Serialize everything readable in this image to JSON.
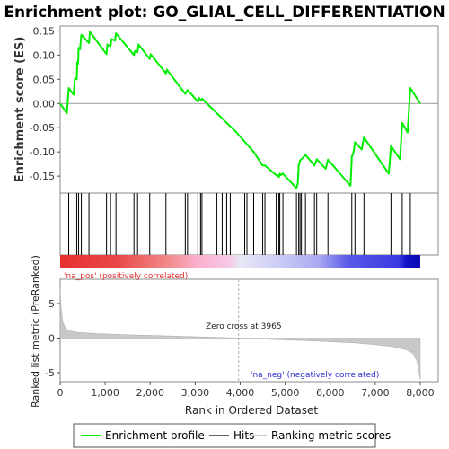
{
  "chart_data": {
    "type": "line",
    "title": "Enrichment plot: GO_GLIAL_CELL_DIFFERENTIATION",
    "top_panel": {
      "ylabel": "Enrichment score (ES)",
      "ylim": [
        -0.185,
        0.16
      ],
      "yticks": [
        0.15,
        0.1,
        0.05,
        0.0,
        -0.05,
        -0.1,
        -0.15
      ],
      "ytick_labels": [
        "0.15",
        "0.10",
        "0.05",
        "0.00",
        "-0.05",
        "-0.10",
        "-0.15"
      ],
      "line_color": "#00ee00",
      "es_points": [
        [
          0,
          0.0
        ],
        [
          150,
          -0.02
        ],
        [
          190,
          0.032
        ],
        [
          300,
          0.018
        ],
        [
          330,
          0.052
        ],
        [
          370,
          0.05
        ],
        [
          380,
          0.085
        ],
        [
          400,
          0.082
        ],
        [
          410,
          0.115
        ],
        [
          440,
          0.112
        ],
        [
          470,
          0.142
        ],
        [
          640,
          0.125
        ],
        [
          660,
          0.148
        ],
        [
          1030,
          0.102
        ],
        [
          1050,
          0.122
        ],
        [
          1120,
          0.118
        ],
        [
          1140,
          0.133
        ],
        [
          1220,
          0.13
        ],
        [
          1240,
          0.145
        ],
        [
          1640,
          0.1
        ],
        [
          1660,
          0.108
        ],
        [
          1720,
          0.106
        ],
        [
          1740,
          0.122
        ],
        [
          1990,
          0.092
        ],
        [
          2010,
          0.102
        ],
        [
          2350,
          0.062
        ],
        [
          2370,
          0.07
        ],
        [
          2780,
          0.02
        ],
        [
          2830,
          0.028
        ],
        [
          3060,
          0.004
        ],
        [
          3080,
          0.012
        ],
        [
          3120,
          0.006
        ],
        [
          3150,
          0.01
        ],
        [
          3700,
          -0.04
        ],
        [
          3900,
          -0.058
        ],
        [
          4300,
          -0.1
        ],
        [
          4500,
          -0.128
        ],
        [
          4550,
          -0.128
        ],
        [
          4800,
          -0.148
        ],
        [
          4830,
          -0.148
        ],
        [
          4860,
          -0.152
        ],
        [
          4880,
          -0.145
        ],
        [
          4900,
          -0.148
        ],
        [
          4950,
          -0.145
        ],
        [
          5250,
          -0.175
        ],
        [
          5280,
          -0.165
        ],
        [
          5300,
          -0.13
        ],
        [
          5330,
          -0.118
        ],
        [
          5360,
          -0.115
        ],
        [
          5400,
          -0.112
        ],
        [
          5450,
          -0.106
        ],
        [
          5650,
          -0.128
        ],
        [
          5700,
          -0.115
        ],
        [
          5900,
          -0.135
        ],
        [
          5950,
          -0.116
        ],
        [
          6450,
          -0.17
        ],
        [
          6480,
          -0.11
        ],
        [
          6520,
          -0.1
        ],
        [
          6550,
          -0.08
        ],
        [
          6700,
          -0.095
        ],
        [
          6750,
          -0.07
        ],
        [
          7300,
          -0.145
        ],
        [
          7350,
          -0.088
        ],
        [
          7550,
          -0.115
        ],
        [
          7600,
          -0.04
        ],
        [
          7720,
          -0.06
        ],
        [
          7780,
          0.032
        ],
        [
          8000,
          0.0
        ]
      ]
    },
    "hits_panel": {
      "label": "Hits",
      "hit_ranks": [
        190,
        330,
        370,
        410,
        470,
        640,
        1030,
        1120,
        1240,
        1640,
        1720,
        1990,
        2350,
        2780,
        2830,
        3060,
        3120,
        3150,
        3480,
        3600,
        3700,
        3780,
        4100,
        4150,
        4300,
        4500,
        4550,
        4800,
        4860,
        4880,
        4950,
        5250,
        5300,
        5330,
        5360,
        5450,
        5650,
        5700,
        5950,
        6480,
        6550,
        6750,
        7350,
        7600,
        7780
      ]
    },
    "heat_bar": {
      "stops": [
        [
          0,
          "#e83030"
        ],
        [
          0.16,
          "#e84848"
        ],
        [
          0.3,
          "#f28a8a"
        ],
        [
          0.38,
          "#fbb0ce"
        ],
        [
          0.47,
          "#f5c8e6"
        ],
        [
          0.5,
          "#e8e8f6"
        ],
        [
          0.62,
          "#c8c8f6"
        ],
        [
          0.72,
          "#a8a8f0"
        ],
        [
          0.8,
          "#5a5ae8"
        ],
        [
          0.94,
          "#3a3ae2"
        ],
        [
          0.96,
          "#1414c8"
        ],
        [
          1,
          "#0808b0"
        ]
      ]
    },
    "bottom_panel": {
      "ylabel": "Ranked list metric (PreRanked)",
      "ylim": [
        -6.3,
        8.5
      ],
      "yticks": [
        5,
        0,
        -5
      ],
      "ytick_labels": [
        "5",
        "0",
        "-5"
      ],
      "zero_cross_label": "Zero cross at 3965",
      "zero_cross_rank": 3965,
      "pos_label": "'na_pos' (positively correlated)",
      "neg_label": "'na_neg' (negatively correlated)",
      "metric_points": [
        [
          0,
          7.2
        ],
        [
          20,
          4.5
        ],
        [
          60,
          2.3
        ],
        [
          120,
          1.4
        ],
        [
          200,
          1.05
        ],
        [
          400,
          0.82
        ],
        [
          800,
          0.65
        ],
        [
          1500,
          0.48
        ],
        [
          2500,
          0.3
        ],
        [
          3500,
          0.1
        ],
        [
          3965,
          0.0
        ],
        [
          4500,
          -0.14
        ],
        [
          5500,
          -0.38
        ],
        [
          6500,
          -0.68
        ],
        [
          7000,
          -0.95
        ],
        [
          7400,
          -1.25
        ],
        [
          7700,
          -1.7
        ],
        [
          7850,
          -2.3
        ],
        [
          7930,
          -3.4
        ],
        [
          7970,
          -4.8
        ],
        [
          8000,
          -6.0
        ]
      ]
    },
    "x_axis": {
      "xlabel": "Rank in Ordered Dataset",
      "xlim": [
        0,
        8400
      ],
      "xticks": [
        0,
        1000,
        2000,
        3000,
        4000,
        5000,
        6000,
        7000,
        8000
      ],
      "xtick_labels": [
        "0",
        "1,000",
        "2,000",
        "3,000",
        "4,000",
        "5,000",
        "6,000",
        "7,000",
        "8,000"
      ],
      "n_ranks": 8000
    },
    "legend": {
      "entries": [
        {
          "label": "Enrichment profile",
          "color": "#00ee00"
        },
        {
          "label": "Hits",
          "color": "#666666"
        },
        {
          "label": "Ranking metric scores",
          "color": "#cccccc"
        }
      ]
    }
  }
}
